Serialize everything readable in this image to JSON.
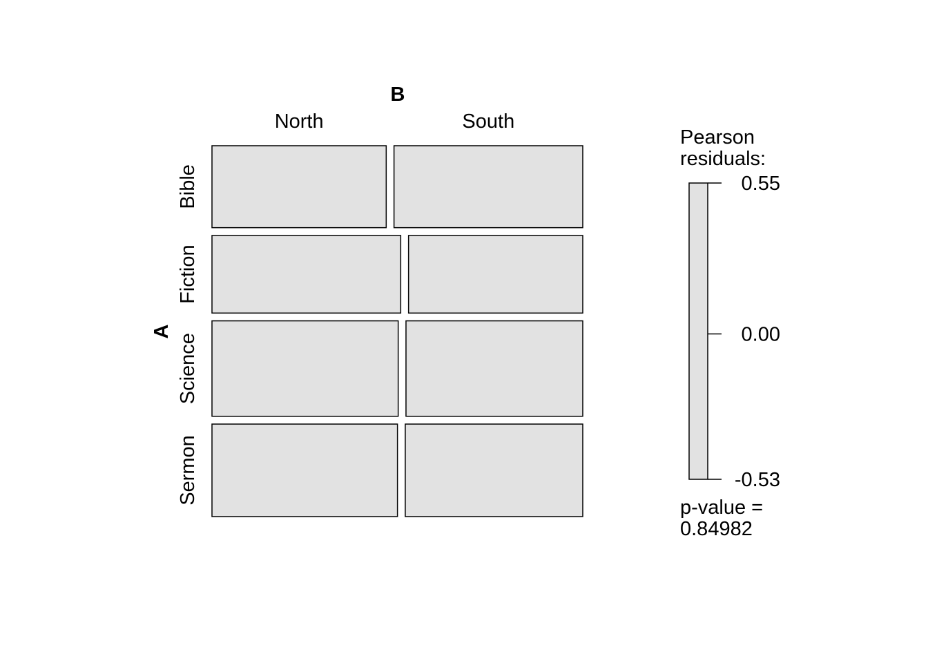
{
  "chart_data": {
    "type": "mosaic",
    "col_variable": "B",
    "row_variable": "A",
    "col_levels": [
      "North",
      "South"
    ],
    "row_levels": [
      "Bible",
      "Fiction",
      "Science",
      "Sermon"
    ],
    "row_proportions": [
      0.225,
      0.213,
      0.262,
      0.254
    ],
    "north_share_by_row": [
      0.48,
      0.52,
      0.513,
      0.511
    ],
    "cells": [
      {
        "row": "Bible",
        "col": "North",
        "fill": "#e2e2e2"
      },
      {
        "row": "Bible",
        "col": "South",
        "fill": "#e2e2e2"
      },
      {
        "row": "Fiction",
        "col": "North",
        "fill": "#e2e2e2"
      },
      {
        "row": "Fiction",
        "col": "South",
        "fill": "#e2e2e2"
      },
      {
        "row": "Science",
        "col": "North",
        "fill": "#e2e2e2"
      },
      {
        "row": "Science",
        "col": "South",
        "fill": "#e2e2e2"
      },
      {
        "row": "Sermon",
        "col": "North",
        "fill": "#e2e2e2"
      },
      {
        "row": "Sermon",
        "col": "South",
        "fill": "#e2e2e2"
      }
    ],
    "legend": {
      "title_line1": "Pearson",
      "title_line2": "residuals:",
      "max": 0.55,
      "min": -0.53,
      "ticks": [
        "0.55",
        "0.00",
        "-0.53"
      ],
      "tick_values": [
        0.55,
        0.0,
        -0.53
      ],
      "fill": "#e2e2e2",
      "pvalue_line1": "p-value =",
      "pvalue_line2": "0.84982"
    }
  }
}
